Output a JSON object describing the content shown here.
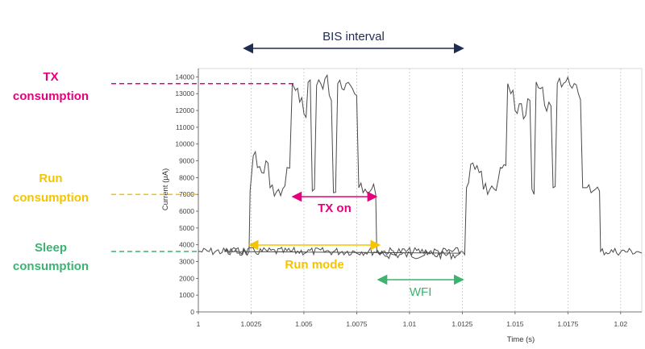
{
  "chart_data": {
    "type": "line",
    "title": "",
    "xlabel": "Time (s)",
    "ylabel": "Current (µA)",
    "xlim": [
      1.0,
      1.021
    ],
    "ylim": [
      0,
      14500
    ],
    "x_ticks": [
      1,
      1.0025,
      1.005,
      1.0075,
      1.01,
      1.0125,
      1.015,
      1.0175,
      1.02
    ],
    "x_tick_labels": [
      "1",
      "1.0025",
      "1.005",
      "1.0075",
      "1.01",
      "1.0125",
      "1.015",
      "1.0175",
      "1.02"
    ],
    "y_ticks": [
      0,
      1000,
      2000,
      3000,
      4000,
      5000,
      6000,
      7000,
      8000,
      9000,
      10000,
      11000,
      12000,
      13000,
      14000
    ],
    "y_tick_labels": [
      "0",
      "1000",
      "2000",
      "3000",
      "4000",
      "5000",
      "6000",
      "7000",
      "8000",
      "9000",
      "10000",
      "11000",
      "12000",
      "13000",
      "14000"
    ],
    "grid": "vertical-dashed",
    "series": [
      {
        "x": [
          1.0,
          1.0024,
          1.00245,
          1.0026,
          1.0028,
          1.003,
          1.0032,
          1.0034,
          1.0036,
          1.0038,
          1.0042,
          1.00445,
          1.0046,
          1.0048,
          1.005,
          1.0052,
          1.0054,
          1.0056,
          1.0058,
          1.006,
          1.0062,
          1.0064,
          1.0066,
          1.0068,
          1.007,
          1.0072,
          1.0074,
          1.0076,
          1.0078,
          1.008,
          1.0082,
          1.0084,
          1.00845,
          1.0086,
          1.0124,
          1.00125,
          1.0127,
          1.0129,
          1.0131,
          1.0133,
          1.0135,
          1.0137,
          1.0139,
          1.0143,
          1.01465,
          1.0148,
          1.015,
          1.0152,
          1.0154,
          1.0156,
          1.0158,
          1.016,
          1.0162,
          1.0164,
          1.0166,
          1.0168,
          1.017,
          1.0172,
          1.0174,
          1.0176,
          1.0178,
          1.018,
          1.0182,
          1.01825,
          1.0184,
          1.0186,
          1.0188,
          1.019,
          1.01905,
          1.021
        ],
        "y": [
          3600,
          3600,
          7200,
          9300,
          8600,
          8300,
          9000,
          7400,
          6900,
          7300,
          8600,
          13600,
          13200,
          12500,
          11800,
          13700,
          7200,
          13500,
          13600,
          13900,
          12900,
          7100,
          13600,
          13300,
          13600,
          13500,
          13000,
          7400,
          7100,
          7100,
          7300,
          7000,
          3600,
          3400,
          3500,
          3600,
          7400,
          8800,
          8500,
          8300,
          7300,
          7000,
          7500,
          8600,
          13600,
          13000,
          12000,
          12400,
          11500,
          12700,
          7300,
          13700,
          13300,
          12300,
          12500,
          7400,
          13600,
          13400,
          13700,
          13500,
          13600,
          13000,
          7400,
          7400,
          7400,
          7100,
          7300,
          7200,
          3600,
          3500
        ]
      }
    ],
    "annotations": [
      {
        "label": "TX\nconsumption",
        "value": 13600,
        "color": "#e6007e"
      },
      {
        "label": "Run\nconsumption",
        "value": 7000,
        "color": "#f5c400"
      },
      {
        "label": "Sleep\nconsumption",
        "value": 3600,
        "color": "#3cb371"
      },
      {
        "label": "BIS interval",
        "from": 1.0022,
        "to": 1.0125,
        "color": "#1f2d50"
      },
      {
        "label": "TX on",
        "from": 1.0045,
        "to": 1.0084,
        "color": "#e6007e"
      },
      {
        "label": "Run mode",
        "from": 1.00245,
        "to": 1.00855,
        "color": "#f5c400"
      },
      {
        "label": "WFI",
        "from": 1.00855,
        "to": 1.0125,
        "color": "#3cb371"
      }
    ]
  }
}
